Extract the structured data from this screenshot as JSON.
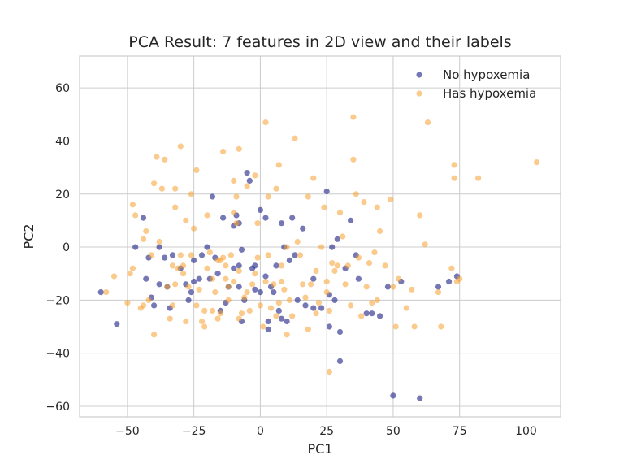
{
  "chart_data": {
    "type": "scatter",
    "title": "PCA Result: 7 features in 2D view and their labels",
    "xlabel": "PC1",
    "ylabel": "PC2",
    "xlim": [
      -68,
      113
    ],
    "ylim": [
      -64,
      72
    ],
    "xticks": [
      -50,
      -25,
      0,
      25,
      50,
      75,
      100
    ],
    "xtick_labels": [
      "−50",
      "−25",
      "0",
      "25",
      "50",
      "75",
      "100"
    ],
    "yticks": [
      -60,
      -40,
      -20,
      0,
      20,
      40,
      60
    ],
    "ytick_labels": [
      "−60",
      "−40",
      "−20",
      "0",
      "20",
      "40",
      "60"
    ],
    "grid": true,
    "legend_position": "top-right",
    "series": [
      {
        "name": "No hypoxemia",
        "color": "#2b2f8c",
        "points": [
          [
            -60,
            -17
          ],
          [
            -54,
            -29
          ],
          [
            -47,
            0
          ],
          [
            -44,
            11
          ],
          [
            -43,
            -12
          ],
          [
            -42,
            -4
          ],
          [
            -41,
            -19
          ],
          [
            -40,
            -22
          ],
          [
            -38,
            -14
          ],
          [
            -38,
            0
          ],
          [
            -36,
            -4
          ],
          [
            -35,
            -15
          ],
          [
            -34,
            -23
          ],
          [
            -33,
            -3
          ],
          [
            -30,
            -8
          ],
          [
            -28,
            -14
          ],
          [
            -27,
            -20
          ],
          [
            -26,
            -17
          ],
          [
            -25,
            -5
          ],
          [
            -25,
            -13
          ],
          [
            -23,
            -12
          ],
          [
            -22,
            -3
          ],
          [
            -20,
            0
          ],
          [
            -19,
            -12
          ],
          [
            -18,
            19
          ],
          [
            -17,
            -4
          ],
          [
            -16,
            -10
          ],
          [
            -15,
            -24
          ],
          [
            -14,
            11
          ],
          [
            -13,
            -21
          ],
          [
            -12,
            -15
          ],
          [
            -10,
            -8
          ],
          [
            -10,
            8
          ],
          [
            -9,
            12
          ],
          [
            -8,
            9
          ],
          [
            -8,
            -7
          ],
          [
            -8,
            -15
          ],
          [
            -7,
            -1
          ],
          [
            -7,
            -28
          ],
          [
            -6,
            -20
          ],
          [
            -5,
            28
          ],
          [
            -4,
            25
          ],
          [
            -3,
            -8
          ],
          [
            -2,
            -7
          ],
          [
            -2,
            -16
          ],
          [
            0,
            14
          ],
          [
            0,
            -17
          ],
          [
            2,
            11
          ],
          [
            2,
            -11
          ],
          [
            3,
            -31
          ],
          [
            3,
            -28
          ],
          [
            4,
            -15
          ],
          [
            5,
            -17
          ],
          [
            6,
            -7
          ],
          [
            7,
            -24
          ],
          [
            8,
            -27
          ],
          [
            8,
            9
          ],
          [
            9,
            0
          ],
          [
            10,
            -28
          ],
          [
            11,
            -5
          ],
          [
            12,
            11
          ],
          [
            13,
            -3
          ],
          [
            14,
            -20
          ],
          [
            16,
            7
          ],
          [
            17,
            -22
          ],
          [
            20,
            -23
          ],
          [
            20,
            -12
          ],
          [
            23,
            -23
          ],
          [
            25,
            21
          ],
          [
            26,
            -30
          ],
          [
            26,
            -18
          ],
          [
            27,
            0
          ],
          [
            28,
            -20
          ],
          [
            29,
            3
          ],
          [
            30,
            -32
          ],
          [
            30,
            -43
          ],
          [
            32,
            -8
          ],
          [
            34,
            10
          ],
          [
            36,
            -3
          ],
          [
            37,
            -12
          ],
          [
            40,
            -25
          ],
          [
            42,
            -25
          ],
          [
            45,
            -26
          ],
          [
            48,
            -15
          ],
          [
            50,
            -56
          ],
          [
            53,
            -13
          ],
          [
            60,
            -57
          ],
          [
            67,
            -15
          ],
          [
            71,
            -13
          ],
          [
            74,
            -11
          ]
        ]
      },
      {
        "name": "Has hypoxemia",
        "color": "#f5a02e",
        "points": [
          [
            -58,
            -17
          ],
          [
            -55,
            -11
          ],
          [
            -50,
            -21
          ],
          [
            -49,
            -10
          ],
          [
            -48,
            -8
          ],
          [
            -48,
            16
          ],
          [
            -47,
            12
          ],
          [
            -45,
            -23
          ],
          [
            -44,
            -22
          ],
          [
            -44,
            3
          ],
          [
            -43,
            6
          ],
          [
            -42,
            -20
          ],
          [
            -41,
            -3
          ],
          [
            -40,
            24
          ],
          [
            -40,
            -33
          ],
          [
            -39,
            34
          ],
          [
            -38,
            2
          ],
          [
            -37,
            22
          ],
          [
            -36,
            33
          ],
          [
            -35,
            -15
          ],
          [
            -34,
            -27
          ],
          [
            -33,
            -22
          ],
          [
            -33,
            -7
          ],
          [
            -32,
            -14
          ],
          [
            -32,
            15
          ],
          [
            -32,
            22
          ],
          [
            -31,
            -8
          ],
          [
            -30,
            -3
          ],
          [
            -30,
            38
          ],
          [
            -29,
            -7
          ],
          [
            -29,
            -10
          ],
          [
            -28,
            10
          ],
          [
            -28,
            -28
          ],
          [
            -27,
            -15
          ],
          [
            -26,
            20
          ],
          [
            -26,
            -3
          ],
          [
            -25,
            7
          ],
          [
            -24,
            29
          ],
          [
            -24,
            -22
          ],
          [
            -23,
            -16
          ],
          [
            -22,
            -28
          ],
          [
            -21,
            -24
          ],
          [
            -21,
            -30
          ],
          [
            -20,
            12
          ],
          [
            -20,
            -8
          ],
          [
            -19,
            -2
          ],
          [
            -18,
            -24
          ],
          [
            -18,
            -12
          ],
          [
            -17,
            -17
          ],
          [
            -16,
            -27
          ],
          [
            -16,
            -5
          ],
          [
            -15,
            -25
          ],
          [
            -15,
            -5
          ],
          [
            -14,
            36
          ],
          [
            -14,
            -4
          ],
          [
            -13,
            -7
          ],
          [
            -13,
            -12
          ],
          [
            -12,
            -20
          ],
          [
            -12,
            -15
          ],
          [
            -11,
            -3
          ],
          [
            -10,
            25
          ],
          [
            -10,
            13
          ],
          [
            -10,
            -13
          ],
          [
            -9,
            19
          ],
          [
            -9,
            9
          ],
          [
            -8,
            37
          ],
          [
            -8,
            -27
          ],
          [
            -8,
            -9
          ],
          [
            -7,
            -25
          ],
          [
            -6,
            -19
          ],
          [
            -5,
            23
          ],
          [
            -5,
            -17
          ],
          [
            -4,
            -24
          ],
          [
            -3,
            -14
          ],
          [
            -2,
            27
          ],
          [
            -2,
            -10
          ],
          [
            -1,
            9
          ],
          [
            -1,
            -4
          ],
          [
            0,
            -22
          ],
          [
            1,
            -30
          ],
          [
            2,
            47
          ],
          [
            2,
            -13
          ],
          [
            3,
            -3
          ],
          [
            3,
            19
          ],
          [
            4,
            -23
          ],
          [
            5,
            -14
          ],
          [
            6,
            -26
          ],
          [
            6,
            22
          ],
          [
            7,
            31
          ],
          [
            7,
            -21
          ],
          [
            8,
            -7
          ],
          [
            8,
            -13
          ],
          [
            9,
            -16
          ],
          [
            10,
            -33
          ],
          [
            10,
            0
          ],
          [
            11,
            -20
          ],
          [
            12,
            -26
          ],
          [
            13,
            41
          ],
          [
            14,
            2
          ],
          [
            15,
            -3
          ],
          [
            16,
            -14
          ],
          [
            17,
            -19
          ],
          [
            18,
            19
          ],
          [
            18,
            -31
          ],
          [
            19,
            -14
          ],
          [
            20,
            26
          ],
          [
            21,
            -25
          ],
          [
            21,
            -9
          ],
          [
            22,
            -21
          ],
          [
            23,
            0
          ],
          [
            24,
            15
          ],
          [
            25,
            -17
          ],
          [
            25,
            -13
          ],
          [
            26,
            -24
          ],
          [
            26,
            -47
          ],
          [
            27,
            -6
          ],
          [
            28,
            -9
          ],
          [
            29,
            -7
          ],
          [
            30,
            13
          ],
          [
            31,
            4
          ],
          [
            32,
            -14
          ],
          [
            33,
            -7
          ],
          [
            34,
            -22
          ],
          [
            35,
            33
          ],
          [
            35,
            49
          ],
          [
            36,
            20
          ],
          [
            37,
            -4
          ],
          [
            38,
            -26
          ],
          [
            39,
            17
          ],
          [
            40,
            -15
          ],
          [
            41,
            -6
          ],
          [
            42,
            -21
          ],
          [
            43,
            -2
          ],
          [
            44,
            -20
          ],
          [
            44,
            15
          ],
          [
            45,
            6
          ],
          [
            47,
            -7
          ],
          [
            49,
            18
          ],
          [
            50,
            -15
          ],
          [
            51,
            -30
          ],
          [
            52,
            -12
          ],
          [
            55,
            -23
          ],
          [
            57,
            -16
          ],
          [
            58,
            -30
          ],
          [
            60,
            12
          ],
          [
            62,
            1
          ],
          [
            63,
            47
          ],
          [
            67,
            -17
          ],
          [
            68,
            -30
          ],
          [
            72,
            -8
          ],
          [
            73,
            26
          ],
          [
            73,
            31
          ],
          [
            74,
            -13
          ],
          [
            75,
            -12
          ],
          [
            82,
            26
          ],
          [
            104,
            32
          ]
        ]
      }
    ]
  }
}
